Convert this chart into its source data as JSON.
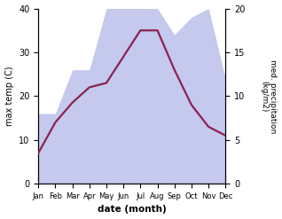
{
  "months": [
    "Jan",
    "Feb",
    "Mar",
    "Apr",
    "May",
    "Jun",
    "Jul",
    "Aug",
    "Sep",
    "Oct",
    "Nov",
    "Dec"
  ],
  "temperature": [
    7,
    14,
    18.5,
    22,
    23,
    29,
    35,
    35,
    26,
    18,
    13,
    11
  ],
  "precipitation": [
    8,
    8,
    13,
    13,
    20,
    20,
    20,
    20,
    17,
    19,
    20,
    12
  ],
  "temp_color": "#8b2252",
  "precip_fill_color": "#b0b8e8",
  "ylabel_left": "max temp (C)",
  "ylabel_right": "med. precipitation\n(kg/m2)",
  "xlabel": "date (month)",
  "ylim_left": [
    0,
    40
  ],
  "ylim_right": [
    0,
    20
  ],
  "yticks_left": [
    0,
    10,
    20,
    30,
    40
  ],
  "yticks_right": [
    0,
    5,
    10,
    15,
    20
  ],
  "bg_color": "#ffffff",
  "temp_linewidth": 1.6,
  "fill_alpha": 0.75
}
